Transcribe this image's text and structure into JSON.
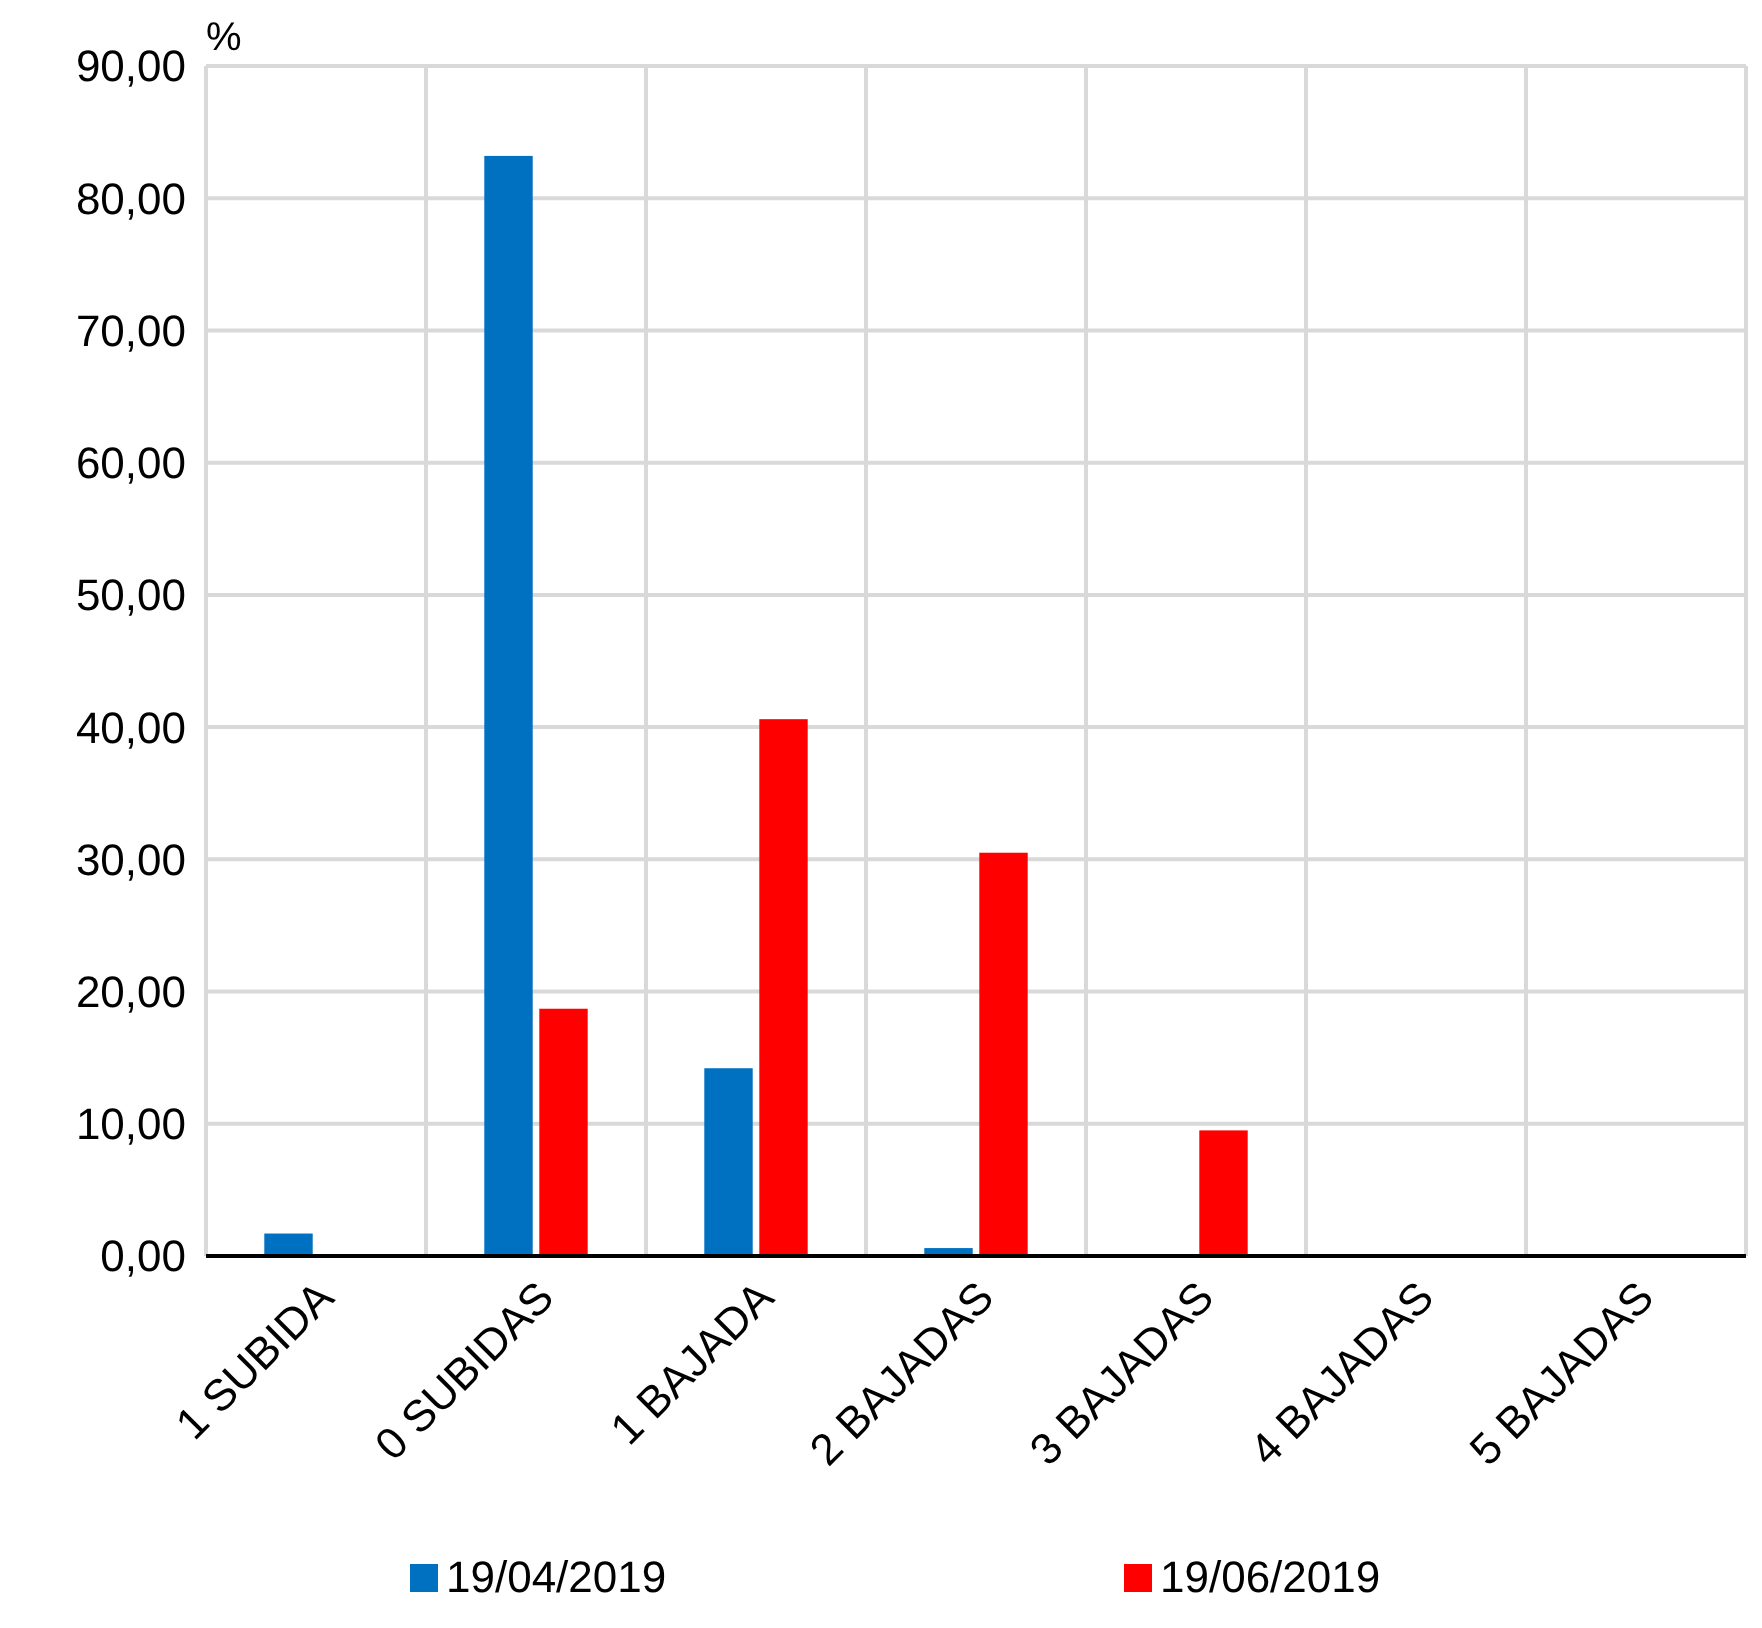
{
  "chart_data": {
    "type": "bar",
    "ylabel": "%",
    "categories": [
      "1 SUBIDA",
      "0 SUBIDAS",
      "1 BAJADA",
      "2 BAJADAS",
      "3 BAJADAS",
      "4 BAJADAS",
      "5 BAJADAS"
    ],
    "series": [
      {
        "name": "19/04/2019",
        "color": "#0070c0",
        "values": [
          1.7,
          83.2,
          14.2,
          0.6,
          0,
          0,
          0
        ]
      },
      {
        "name": "19/06/2019",
        "color": "#ff0000",
        "values": [
          0,
          18.7,
          40.6,
          30.5,
          9.5,
          0,
          0
        ]
      }
    ],
    "ylim": [
      0,
      90
    ],
    "yticks": [
      {
        "value": 0,
        "label": "0,00"
      },
      {
        "value": 10,
        "label": "10,00"
      },
      {
        "value": 20,
        "label": "20,00"
      },
      {
        "value": 30,
        "label": "30,00"
      },
      {
        "value": 40,
        "label": "40,00"
      },
      {
        "value": 50,
        "label": "50,00"
      },
      {
        "value": 60,
        "label": "60,00"
      },
      {
        "value": 70,
        "label": "70,00"
      },
      {
        "value": 80,
        "label": "80,00"
      },
      {
        "value": 90,
        "label": "90,00"
      }
    ],
    "grid": true,
    "legend": "bottom"
  }
}
